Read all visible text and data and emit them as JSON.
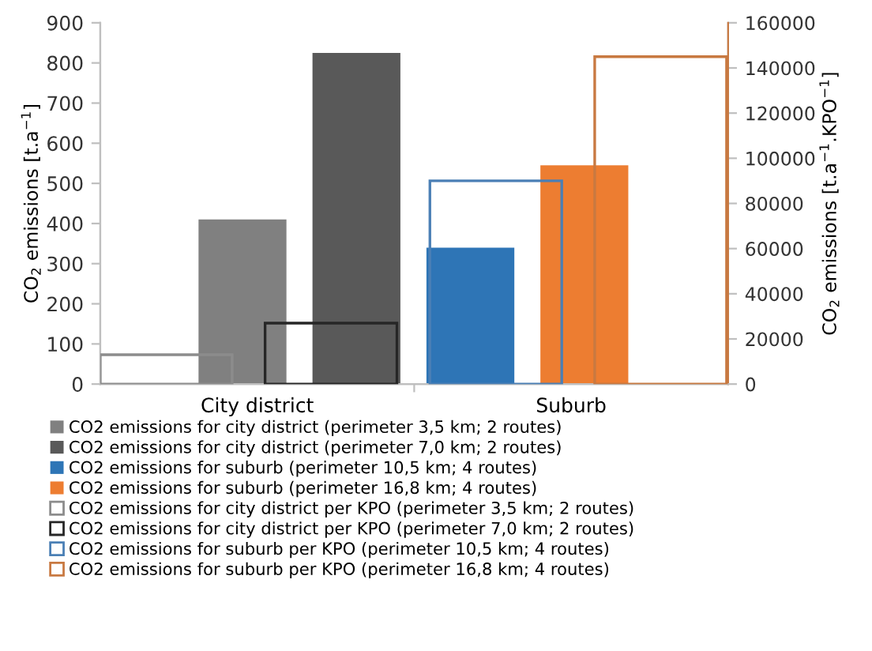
{
  "chart_data": {
    "type": "bar",
    "categories": [
      "City district",
      "Suburb"
    ],
    "ylabel": "CO$_{2}$ emissions [t.a$^{−1}$]",
    "y2label": "CO$_{2}$ emissions [t.a$^{−1}$.KPO$^{−1}$]",
    "ylim": [
      0,
      900
    ],
    "yticks": [
      0,
      100,
      200,
      300,
      400,
      500,
      600,
      700,
      800,
      900
    ],
    "y2lim": [
      0,
      160000
    ],
    "y2ticks": [
      0,
      20000,
      40000,
      60000,
      80000,
      100000,
      120000,
      140000,
      160000
    ],
    "grid": false,
    "legend": "bottom",
    "series": [
      {
        "name": "CO2 emissions for city district (perimeter 3,5 km; 2 routes)",
        "color": "#808080",
        "values": [
          410,
          null
        ]
      },
      {
        "name": "CO2 emissions for city district (perimeter 7,0 km; 2 routes)",
        "color": "#595959",
        "values": [
          825,
          null
        ]
      },
      {
        "name": "CO2 emissions for suburb (perimeter 10,5 km; 4 routes)",
        "color": "#2e75b6",
        "values": [
          null,
          340
        ]
      },
      {
        "name": "CO2 emissions for suburb (perimeter 16,8 km; 4 routes)",
        "color": "#ed7d31",
        "values": [
          null,
          545
        ]
      },
      {
        "name": "CO2 emissions for city district per KPO (perimeter 3,5 km; 2 routes)",
        "color": "#8c8c8c",
        "axis": "y2",
        "values": [
          13000,
          null
        ]
      },
      {
        "name": "CO2 emissions for city district per KPO (perimeter 7,0 km; 2 routes)",
        "color": "#262626",
        "axis": "y2",
        "values": [
          27000,
          null
        ]
      },
      {
        "name": "CO2 emissions for suburb per KPO (perimeter 10,5 km; 4 routes)",
        "color": "#4a7fb5",
        "axis": "y2",
        "values": [
          null,
          90000
        ]
      },
      {
        "name": "CO2 emissions for suburb per KPO (perimeter 16,8 km; 4 routes)",
        "color": "#c87941",
        "axis": "y2",
        "values": [
          null,
          145000
        ]
      }
    ]
  }
}
